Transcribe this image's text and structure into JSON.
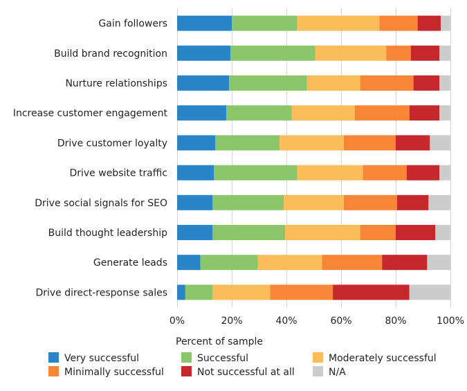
{
  "chart_data": {
    "type": "bar",
    "orientation": "horizontal",
    "stacked": true,
    "categories": [
      "Gain followers",
      "Build brand recognition",
      "Nurture relationships",
      "Increase customer engagement",
      "Drive customer loyalty",
      "Drive website traffic",
      "Drive social signals for SEO",
      "Build thought leadership",
      "Generate leads",
      "Drive direct-response sales"
    ],
    "series": [
      {
        "name": "Very successful",
        "color": "#2a85c6",
        "values": [
          20,
          19.5,
          19,
          18,
          14,
          13.5,
          13,
          13,
          8.5,
          3
        ]
      },
      {
        "name": "Successful",
        "color": "#8cc66c",
        "values": [
          24,
          31,
          28.5,
          24,
          23.5,
          30.5,
          26,
          26.5,
          21,
          10
        ]
      },
      {
        "name": "Moderately successful",
        "color": "#fbbd5a",
        "values": [
          30,
          26,
          19.5,
          23,
          23.5,
          24,
          22,
          27.5,
          23.5,
          21
        ]
      },
      {
        "name": "Minimally successful",
        "color": "#f88637",
        "values": [
          14,
          9,
          19.5,
          20,
          19,
          16,
          19.5,
          13,
          22,
          23
        ]
      },
      {
        "name": "Not successful at all",
        "color": "#c5292c",
        "values": [
          8.5,
          10.5,
          9.5,
          11,
          12.5,
          12,
          11.5,
          14.5,
          16.5,
          28
        ]
      },
      {
        "name": "N/A",
        "color": "#cccccc",
        "values": [
          3.5,
          4,
          4,
          4,
          7.5,
          4,
          8,
          5.5,
          8.5,
          15
        ]
      }
    ],
    "xlabel": "Percent of sample",
    "xlim": [
      0,
      100
    ],
    "xticks": [
      "0%",
      "20%",
      "40%",
      "60%",
      "80%",
      "100%"
    ],
    "grid": true,
    "legend_position": "bottom"
  }
}
